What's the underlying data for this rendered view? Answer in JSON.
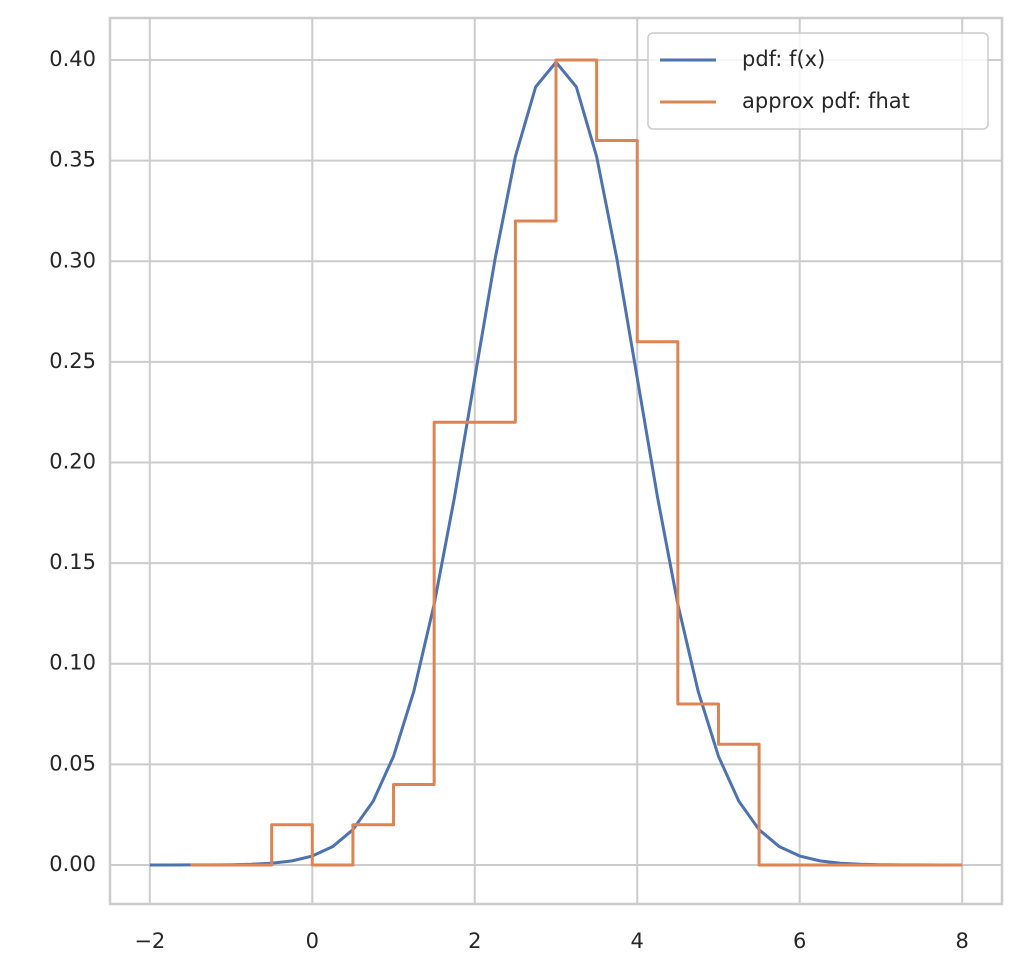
{
  "chart_data": {
    "type": "line",
    "series": [
      {
        "name": "pdf: f(x)",
        "color": "#4c72b0",
        "x": [
          -2,
          -1.75,
          -1.5,
          -1.25,
          -1,
          -0.75,
          -0.5,
          -0.25,
          0,
          0.25,
          0.5,
          0.75,
          1,
          1.25,
          1.5,
          1.75,
          2,
          2.25,
          2.5,
          2.75,
          3,
          3.25,
          3.5,
          3.75,
          4,
          4.25,
          4.5,
          4.75,
          5,
          5.25,
          5.5,
          5.75,
          6,
          6.25,
          6.5,
          6.75,
          7,
          7.25,
          7.5,
          7.75,
          8
        ],
        "values": [
          1.5e-06,
          5e-06,
          1.6e-05,
          4.77e-05,
          0.0001338,
          0.000353,
          0.000873,
          0.002029,
          0.004432,
          0.009094,
          0.01753,
          0.03174,
          0.05399,
          0.08628,
          0.12952,
          0.18265,
          0.24197,
          0.30114,
          0.35207,
          0.38667,
          0.39894,
          0.38667,
          0.35207,
          0.30114,
          0.24197,
          0.18265,
          0.12952,
          0.08628,
          0.05399,
          0.03174,
          0.01753,
          0.009094,
          0.004432,
          0.002029,
          0.000873,
          0.000353,
          0.0001338,
          4.77e-05,
          1.6e-05,
          5e-06,
          1.5e-06
        ]
      },
      {
        "name": "approx pdf: fhat",
        "color": "#dd8452",
        "step": "post",
        "x": [
          -1.5,
          -1,
          -0.5,
          0,
          0.5,
          1,
          1.5,
          2,
          2.5,
          3,
          3.5,
          4,
          4.5,
          5,
          5.5,
          6,
          6.5,
          7,
          7.5,
          8
        ],
        "values": [
          0,
          0,
          0.02,
          0,
          0.02,
          0.04,
          0.22,
          0.22,
          0.32,
          0.4,
          0.36,
          0.26,
          0.08,
          0.06,
          0,
          0,
          0,
          0,
          0,
          0
        ]
      }
    ],
    "xlim": [
      -2.49,
      8.49
    ],
    "ylim": [
      -0.0194,
      0.4209
    ],
    "xticks": [
      {
        "value": -2,
        "label": "−2"
      },
      0,
      2,
      4,
      6,
      8
    ],
    "yticks": [
      {
        "value": 0,
        "label": "0.00"
      },
      {
        "value": 0.05,
        "label": "0.05"
      },
      {
        "value": 0.1,
        "label": "0.10"
      },
      {
        "value": 0.15,
        "label": "0.15"
      },
      {
        "value": 0.2,
        "label": "0.20"
      },
      {
        "value": 0.25,
        "label": "0.25"
      },
      {
        "value": 0.3,
        "label": "0.30"
      },
      {
        "value": 0.35,
        "label": "0.35"
      },
      {
        "value": 0.4,
        "label": "0.40"
      }
    ],
    "grid": true,
    "legend": "upper right"
  }
}
